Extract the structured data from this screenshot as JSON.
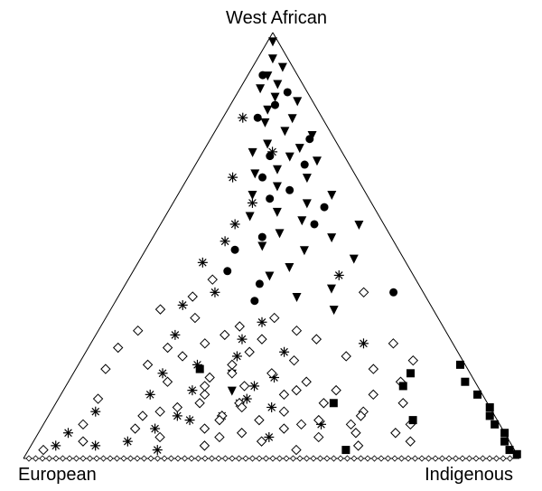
{
  "chart_data": {
    "type": "scatter",
    "subtype": "ternary",
    "corners": {
      "top": "West African",
      "left": "European",
      "right": "Indigenous"
    },
    "components": [
      "West African",
      "European",
      "Indigenous"
    ],
    "grid": false,
    "legend": "none",
    "marker_color": "#000000",
    "series": [
      {
        "marker": "filled-triangle-down",
        "points": [
          [
            0.98,
            0.01,
            0.01
          ],
          [
            0.94,
            0.03,
            0.03
          ],
          [
            0.92,
            0.02,
            0.06
          ],
          [
            0.9,
            0.06,
            0.04
          ],
          [
            0.88,
            0.05,
            0.07
          ],
          [
            0.87,
            0.09,
            0.04
          ],
          [
            0.85,
            0.07,
            0.08
          ],
          [
            0.84,
            0.03,
            0.13
          ],
          [
            0.82,
            0.1,
            0.08
          ],
          [
            0.8,
            0.06,
            0.14
          ],
          [
            0.79,
            0.12,
            0.09
          ],
          [
            0.77,
            0.09,
            0.14
          ],
          [
            0.76,
            0.04,
            0.2
          ],
          [
            0.74,
            0.14,
            0.12
          ],
          [
            0.73,
            0.08,
            0.19
          ],
          [
            0.72,
            0.18,
            0.1
          ],
          [
            0.71,
            0.11,
            0.18
          ],
          [
            0.7,
            0.06,
            0.24
          ],
          [
            0.68,
            0.15,
            0.17
          ],
          [
            0.67,
            0.2,
            0.13
          ],
          [
            0.66,
            0.1,
            0.24
          ],
          [
            0.64,
            0.17,
            0.19
          ],
          [
            0.62,
            0.23,
            0.15
          ],
          [
            0.62,
            0.07,
            0.31
          ],
          [
            0.6,
            0.13,
            0.27
          ],
          [
            0.58,
            0.2,
            0.22
          ],
          [
            0.57,
            0.26,
            0.17
          ],
          [
            0.56,
            0.16,
            0.28
          ],
          [
            0.55,
            0.05,
            0.4
          ],
          [
            0.53,
            0.22,
            0.25
          ],
          [
            0.52,
            0.12,
            0.36
          ],
          [
            0.5,
            0.27,
            0.23
          ],
          [
            0.49,
            0.19,
            0.32
          ],
          [
            0.47,
            0.1,
            0.43
          ],
          [
            0.45,
            0.24,
            0.31
          ],
          [
            0.43,
            0.29,
            0.28
          ],
          [
            0.4,
            0.18,
            0.42
          ],
          [
            0.38,
            0.26,
            0.36
          ],
          [
            0.35,
            0.2,
            0.45
          ],
          [
            0.2,
            0.48,
            0.32
          ],
          [
            0.16,
            0.5,
            0.34
          ]
        ]
      },
      {
        "marker": "filled-circle",
        "points": [
          [
            0.9,
            0.07,
            0.03
          ],
          [
            0.86,
            0.04,
            0.1
          ],
          [
            0.83,
            0.08,
            0.09
          ],
          [
            0.8,
            0.13,
            0.07
          ],
          [
            0.75,
            0.05,
            0.2
          ],
          [
            0.71,
            0.15,
            0.14
          ],
          [
            0.69,
            0.09,
            0.22
          ],
          [
            0.66,
            0.19,
            0.15
          ],
          [
            0.63,
            0.15,
            0.22
          ],
          [
            0.61,
            0.2,
            0.19
          ],
          [
            0.59,
            0.1,
            0.31
          ],
          [
            0.55,
            0.14,
            0.31
          ],
          [
            0.52,
            0.26,
            0.22
          ],
          [
            0.49,
            0.33,
            0.18
          ],
          [
            0.44,
            0.37,
            0.19
          ],
          [
            0.41,
            0.32,
            0.27
          ],
          [
            0.39,
            0.06,
            0.55
          ],
          [
            0.37,
            0.35,
            0.28
          ]
        ]
      },
      {
        "marker": "asterisk",
        "points": [
          [
            0.8,
            0.16,
            0.04
          ],
          [
            0.72,
            0.14,
            0.14
          ],
          [
            0.66,
            0.25,
            0.09
          ],
          [
            0.6,
            0.24,
            0.16
          ],
          [
            0.55,
            0.3,
            0.15
          ],
          [
            0.51,
            0.34,
            0.15
          ],
          [
            0.46,
            0.41,
            0.13
          ],
          [
            0.43,
            0.15,
            0.42
          ],
          [
            0.39,
            0.42,
            0.19
          ],
          [
            0.36,
            0.5,
            0.14
          ],
          [
            0.32,
            0.36,
            0.32
          ],
          [
            0.29,
            0.55,
            0.16
          ],
          [
            0.27,
            0.18,
            0.55
          ],
          [
            0.24,
            0.45,
            0.31
          ],
          [
            0.2,
            0.62,
            0.18
          ],
          [
            0.19,
            0.4,
            0.41
          ],
          [
            0.17,
            0.45,
            0.38
          ],
          [
            0.15,
            0.67,
            0.18
          ],
          [
            0.13,
            0.5,
            0.37
          ],
          [
            0.12,
            0.44,
            0.44
          ],
          [
            0.11,
            0.8,
            0.09
          ],
          [
            0.1,
            0.55,
            0.35
          ],
          [
            0.09,
            0.62,
            0.29
          ],
          [
            0.08,
            0.36,
            0.56
          ],
          [
            0.07,
            0.7,
            0.23
          ],
          [
            0.06,
            0.88,
            0.06
          ],
          [
            0.05,
            0.48,
            0.47
          ],
          [
            0.04,
            0.77,
            0.19
          ],
          [
            0.03,
            0.92,
            0.05
          ],
          [
            0.02,
            0.72,
            0.26
          ],
          [
            0.25,
            0.35,
            0.4
          ],
          [
            0.14,
            0.48,
            0.38
          ],
          [
            0.16,
            0.58,
            0.26
          ],
          [
            0.1,
            0.64,
            0.26
          ],
          [
            0.28,
            0.42,
            0.3
          ],
          [
            0.22,
            0.54,
            0.24
          ],
          [
            0.03,
            0.84,
            0.13
          ]
        ]
      },
      {
        "marker": "open-diamond",
        "points": [
          [
            0.42,
            0.41,
            0.17
          ],
          [
            0.38,
            0.47,
            0.15
          ],
          [
            0.35,
            0.55,
            0.1
          ],
          [
            0.33,
            0.49,
            0.18
          ],
          [
            0.31,
            0.41,
            0.28
          ],
          [
            0.3,
            0.62,
            0.08
          ],
          [
            0.29,
            0.45,
            0.26
          ],
          [
            0.28,
            0.38,
            0.34
          ],
          [
            0.27,
            0.5,
            0.23
          ],
          [
            0.26,
            0.68,
            0.06
          ],
          [
            0.25,
            0.42,
            0.33
          ],
          [
            0.24,
            0.56,
            0.2
          ],
          [
            0.23,
            0.34,
            0.43
          ],
          [
            0.22,
            0.47,
            0.31
          ],
          [
            0.21,
            0.73,
            0.06
          ],
          [
            0.2,
            0.4,
            0.4
          ],
          [
            0.19,
            0.53,
            0.28
          ],
          [
            0.18,
            0.34,
            0.48
          ],
          [
            0.18,
            0.62,
            0.2
          ],
          [
            0.17,
            0.47,
            0.36
          ],
          [
            0.16,
            0.29,
            0.55
          ],
          [
            0.15,
            0.56,
            0.29
          ],
          [
            0.15,
            0.4,
            0.45
          ],
          [
            0.14,
            0.78,
            0.08
          ],
          [
            0.13,
            0.33,
            0.54
          ],
          [
            0.13,
            0.5,
            0.37
          ],
          [
            0.12,
            0.63,
            0.25
          ],
          [
            0.11,
            0.42,
            0.47
          ],
          [
            0.11,
            0.26,
            0.63
          ],
          [
            0.1,
            0.55,
            0.35
          ],
          [
            0.1,
            0.71,
            0.19
          ],
          [
            0.09,
            0.36,
            0.55
          ],
          [
            0.09,
            0.48,
            0.43
          ],
          [
            0.08,
            0.84,
            0.08
          ],
          [
            0.08,
            0.3,
            0.62
          ],
          [
            0.07,
            0.6,
            0.33
          ],
          [
            0.07,
            0.44,
            0.49
          ],
          [
            0.06,
            0.53,
            0.41
          ],
          [
            0.06,
            0.22,
            0.72
          ],
          [
            0.05,
            0.7,
            0.25
          ],
          [
            0.05,
            0.38,
            0.57
          ],
          [
            0.04,
            0.86,
            0.1
          ],
          [
            0.04,
            0.5,
            0.46
          ],
          [
            0.03,
            0.62,
            0.35
          ],
          [
            0.03,
            0.31,
            0.66
          ],
          [
            0.02,
            0.44,
            0.54
          ],
          [
            0.02,
            0.95,
            0.03
          ],
          [
            0.3,
            0.3,
            0.4
          ],
          [
            0.26,
            0.58,
            0.16
          ],
          [
            0.22,
            0.64,
            0.14
          ],
          [
            0.2,
            0.48,
            0.32
          ],
          [
            0.17,
            0.55,
            0.28
          ],
          [
            0.16,
            0.37,
            0.47
          ],
          [
            0.13,
            0.58,
            0.29
          ],
          [
            0.11,
            0.67,
            0.22
          ],
          [
            0.09,
            0.56,
            0.35
          ],
          [
            0.07,
            0.74,
            0.19
          ],
          [
            0.05,
            0.58,
            0.37
          ],
          [
            0.33,
            0.33,
            0.34
          ],
          [
            0.28,
            0.27,
            0.45
          ],
          [
            0.24,
            0.23,
            0.53
          ],
          [
            0.21,
            0.19,
            0.6
          ],
          [
            0.27,
            0.12,
            0.61
          ],
          [
            0.23,
            0.1,
            0.67
          ],
          [
            0.18,
            0.15,
            0.67
          ],
          [
            0.15,
            0.22,
            0.63
          ],
          [
            0.13,
            0.17,
            0.7
          ],
          [
            0.1,
            0.27,
            0.63
          ],
          [
            0.08,
            0.18,
            0.74
          ],
          [
            0.06,
            0.3,
            0.64
          ],
          [
            0.04,
            0.2,
            0.76
          ],
          [
            0.39,
            0.12,
            0.49
          ],
          [
            0.08,
            0.4,
            0.52
          ],
          [
            0.12,
            0.5,
            0.38
          ]
        ]
      },
      {
        "marker": "filled-square",
        "points": [
          [
            0.01,
            0.0,
            0.99
          ],
          [
            0.02,
            0.01,
            0.97
          ],
          [
            0.04,
            0.01,
            0.95
          ],
          [
            0.06,
            0.0,
            0.94
          ],
          [
            0.08,
            0.01,
            0.91
          ],
          [
            0.1,
            0.01,
            0.89
          ],
          [
            0.12,
            0.0,
            0.88
          ],
          [
            0.15,
            0.01,
            0.84
          ],
          [
            0.18,
            0.02,
            0.8
          ],
          [
            0.22,
            0.01,
            0.77
          ],
          [
            0.2,
            0.12,
            0.68
          ],
          [
            0.17,
            0.15,
            0.68
          ],
          [
            0.09,
            0.17,
            0.74
          ],
          [
            0.21,
            0.54,
            0.25
          ],
          [
            0.13,
            0.31,
            0.56
          ],
          [
            0.02,
            0.34,
            0.64
          ]
        ]
      }
    ]
  }
}
